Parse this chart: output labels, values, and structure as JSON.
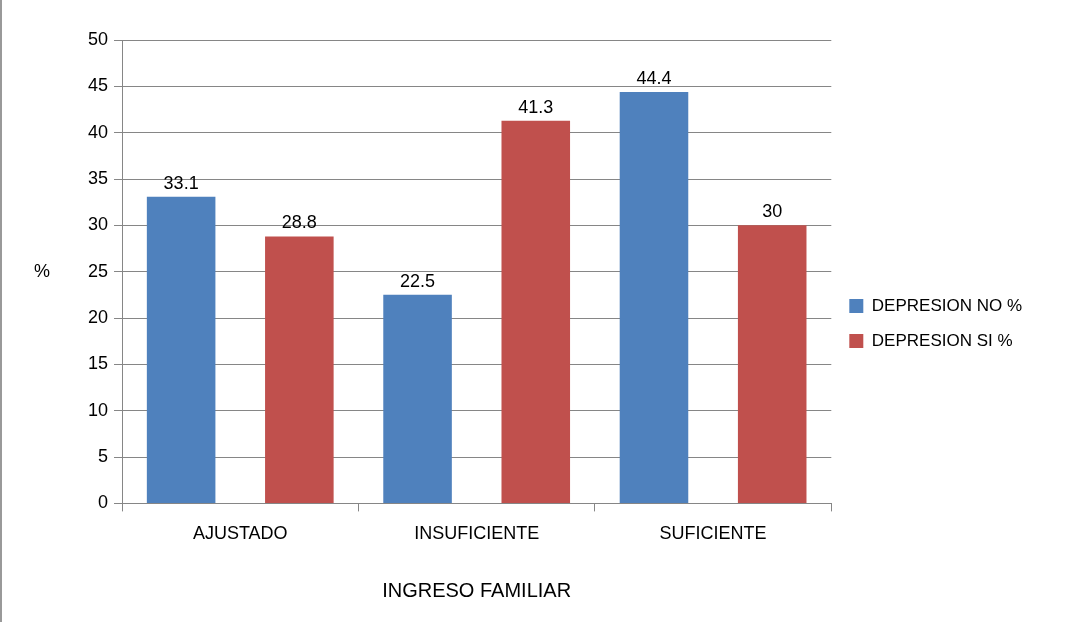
{
  "chart_data": {
    "type": "bar",
    "xlabel": "INGRESO FAMILIAR",
    "ylabel": "%",
    "categories": [
      "AJUSTADO",
      "INSUFICIENTE",
      "SUFICIENTE"
    ],
    "series": [
      {
        "name": "DEPRESION NO %",
        "color": "#4f81bd",
        "values": [
          33.1,
          22.5,
          44.4
        ]
      },
      {
        "name": "DEPRESION SI %",
        "color": "#c0504d",
        "values": [
          28.8,
          41.3,
          30
        ]
      }
    ],
    "ylim": [
      0,
      50
    ],
    "yticks": [
      0,
      5,
      10,
      15,
      20,
      25,
      30,
      35,
      40,
      45,
      50
    ],
    "grid": "y",
    "legend": "right",
    "data_labels": true
  }
}
